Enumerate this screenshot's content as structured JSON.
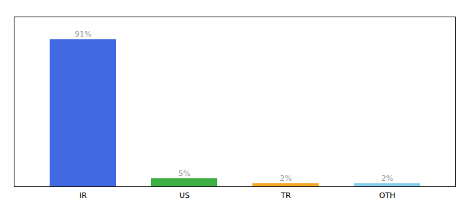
{
  "chart_data": {
    "type": "bar",
    "categories": [
      "IR",
      "US",
      "TR",
      "OTH"
    ],
    "values": [
      91,
      5,
      2,
      2
    ],
    "colors": [
      "#4169e1",
      "#3cb043",
      "#f5a623",
      "#87ceeb"
    ],
    "value_labels": [
      "91%",
      "5%",
      "2%",
      "2%"
    ],
    "data_labels": true,
    "ylim": [
      0,
      105
    ],
    "tick_labels": "x",
    "grid": false
  }
}
